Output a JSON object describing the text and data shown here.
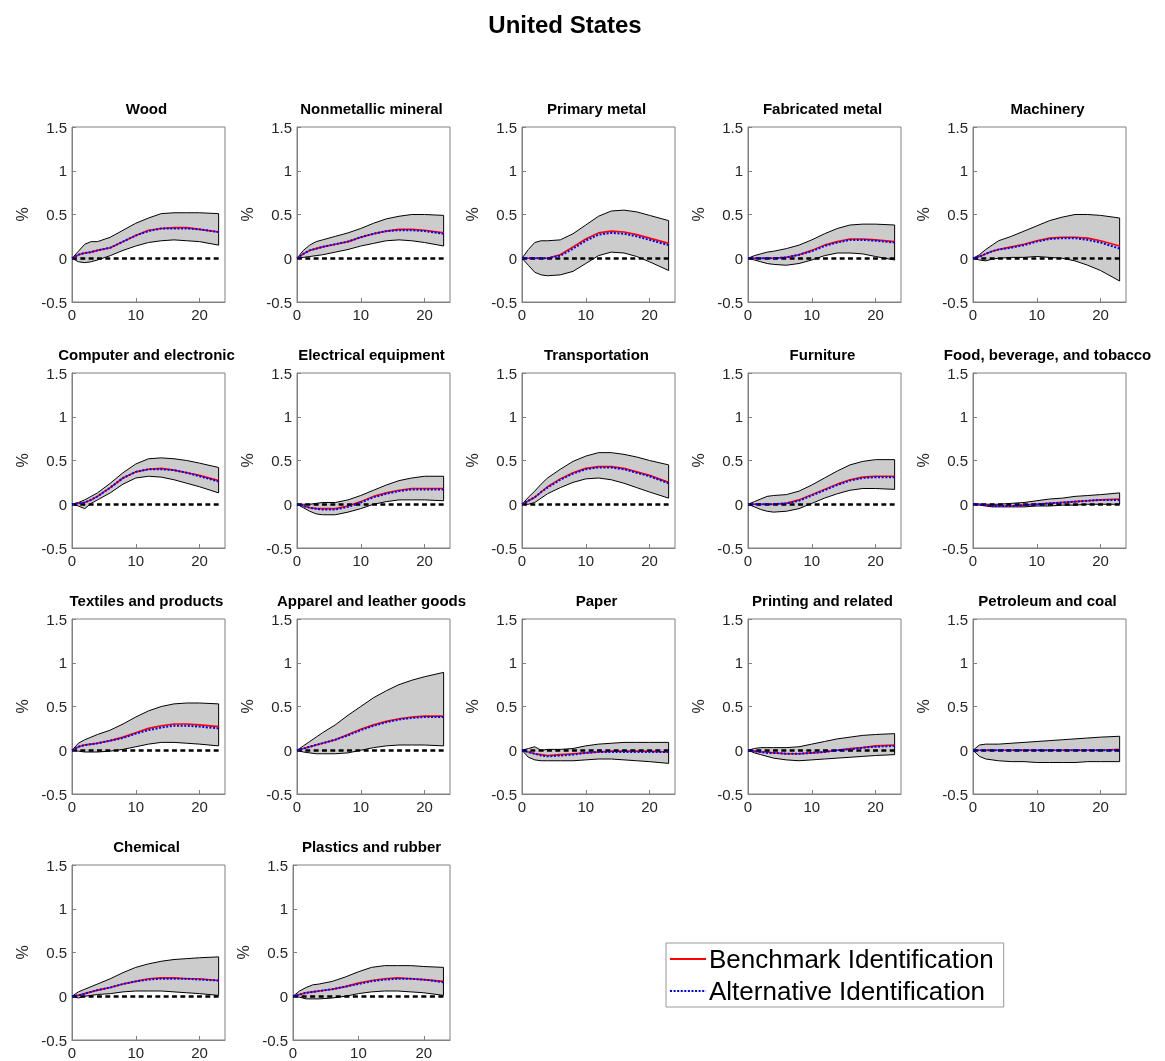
{
  "chart_data": [
    {
      "type": "other",
      "title": "United States"
    },
    {
      "type": "line",
      "title": "Wood",
      "ylabel": "%",
      "x": [
        0,
        1,
        2,
        3,
        4,
        6,
        8,
        10,
        12,
        14,
        16,
        18,
        20,
        23
      ],
      "xlim": [
        0,
        24
      ],
      "xticks": [
        0,
        10,
        20
      ],
      "ylim": [
        -0.5,
        1.5
      ],
      "yticks": [
        -0.5,
        0,
        0.5,
        1,
        1.5
      ],
      "ref_lines": [
        {
          "axis": "y",
          "value": 0,
          "color": "#000000",
          "line_style": "dashed"
        }
      ],
      "series": [
        {
          "color": "#ff0000",
          "values": [
            0,
            0.04,
            0.06,
            0.07,
            0.09,
            0.12,
            0.19,
            0.26,
            0.32,
            0.34,
            0.35,
            0.35,
            0.33,
            0.3
          ],
          "lower": [
            0,
            -0.04,
            -0.05,
            -0.04,
            -0.02,
            0.03,
            0.09,
            0.14,
            0.18,
            0.2,
            0.21,
            0.2,
            0.19,
            0.15
          ],
          "upper": [
            0,
            0.08,
            0.16,
            0.19,
            0.19,
            0.24,
            0.32,
            0.4,
            0.46,
            0.51,
            0.52,
            0.52,
            0.52,
            0.51
          ]
        },
        {
          "color": "#0000ff",
          "line_style": "dotted",
          "values": [
            0,
            0.04,
            0.06,
            0.07,
            0.09,
            0.12,
            0.19,
            0.26,
            0.31,
            0.34,
            0.34,
            0.34,
            0.33,
            0.3
          ]
        }
      ]
    },
    {
      "type": "line",
      "title": "Nonmetallic mineral",
      "ylabel": "%",
      "x": [
        0,
        1,
        2,
        3,
        4,
        6,
        8,
        10,
        12,
        14,
        16,
        18,
        20,
        23
      ],
      "xlim": [
        0,
        24
      ],
      "xticks": [
        0,
        10,
        20
      ],
      "ylim": [
        -0.5,
        1.5
      ],
      "yticks": [
        -0.5,
        0,
        0.5,
        1,
        1.5
      ],
      "ref_lines": [
        {
          "axis": "y",
          "value": 0,
          "color": "#000000",
          "line_style": "dashed"
        }
      ],
      "series": [
        {
          "color": "#ff0000",
          "values": [
            0,
            0.05,
            0.09,
            0.11,
            0.13,
            0.16,
            0.19,
            0.24,
            0.28,
            0.31,
            0.33,
            0.33,
            0.32,
            0.29
          ],
          "lower": [
            0,
            0.01,
            0.02,
            0.03,
            0.04,
            0.07,
            0.1,
            0.14,
            0.17,
            0.2,
            0.21,
            0.2,
            0.18,
            0.14
          ],
          "upper": [
            0,
            0.09,
            0.15,
            0.19,
            0.21,
            0.25,
            0.29,
            0.34,
            0.4,
            0.45,
            0.48,
            0.5,
            0.5,
            0.49
          ]
        },
        {
          "color": "#0000ff",
          "line_style": "dotted",
          "values": [
            0,
            0.05,
            0.09,
            0.11,
            0.13,
            0.16,
            0.19,
            0.24,
            0.28,
            0.31,
            0.32,
            0.32,
            0.31,
            0.28
          ]
        }
      ]
    },
    {
      "type": "line",
      "title": "Primary metal",
      "ylabel": "%",
      "x": [
        0,
        1,
        2,
        3,
        4,
        6,
        8,
        10,
        12,
        14,
        16,
        18,
        20,
        23
      ],
      "xlim": [
        0,
        24
      ],
      "xticks": [
        0,
        10,
        20
      ],
      "ylim": [
        -0.5,
        1.5
      ],
      "yticks": [
        -0.5,
        0,
        0.5,
        1,
        1.5
      ],
      "ref_lines": [
        {
          "axis": "y",
          "value": 0,
          "color": "#000000",
          "line_style": "dashed"
        }
      ],
      "series": [
        {
          "color": "#ff0000",
          "values": [
            0,
            0,
            0,
            0,
            0,
            0.04,
            0.13,
            0.22,
            0.29,
            0.31,
            0.3,
            0.27,
            0.23,
            0.17
          ],
          "lower": [
            0,
            -0.08,
            -0.16,
            -0.19,
            -0.2,
            -0.19,
            -0.15,
            -0.06,
            0.03,
            0.07,
            0.06,
            0.02,
            -0.04,
            -0.14
          ],
          "upper": [
            0,
            0.1,
            0.18,
            0.2,
            0.2,
            0.21,
            0.28,
            0.38,
            0.48,
            0.54,
            0.55,
            0.53,
            0.49,
            0.43
          ]
        },
        {
          "color": "#0000ff",
          "line_style": "dotted",
          "values": [
            0,
            0,
            0,
            0,
            0,
            0.03,
            0.11,
            0.2,
            0.27,
            0.29,
            0.28,
            0.25,
            0.21,
            0.15
          ]
        }
      ]
    },
    {
      "type": "line",
      "title": "Fabricated metal",
      "ylabel": "%",
      "x": [
        0,
        1,
        2,
        3,
        4,
        6,
        8,
        10,
        12,
        14,
        16,
        18,
        20,
        23
      ],
      "xlim": [
        0,
        24
      ],
      "xticks": [
        0,
        10,
        20
      ],
      "ylim": [
        -0.5,
        1.5
      ],
      "yticks": [
        -0.5,
        0,
        0.5,
        1,
        1.5
      ],
      "ref_lines": [
        {
          "axis": "y",
          "value": 0,
          "color": "#000000",
          "line_style": "dashed"
        }
      ],
      "series": [
        {
          "color": "#ff0000",
          "values": [
            0,
            0,
            0,
            0,
            0,
            0.01,
            0.04,
            0.09,
            0.15,
            0.19,
            0.22,
            0.22,
            0.21,
            0.19
          ],
          "lower": [
            0,
            -0.02,
            -0.04,
            -0.06,
            -0.07,
            -0.08,
            -0.06,
            -0.02,
            0.03,
            0.06,
            0.06,
            0.05,
            0.02,
            -0.02
          ],
          "upper": [
            0,
            0.03,
            0.05,
            0.07,
            0.08,
            0.11,
            0.15,
            0.21,
            0.28,
            0.34,
            0.38,
            0.39,
            0.39,
            0.38
          ]
        },
        {
          "color": "#0000ff",
          "line_style": "dotted",
          "values": [
            0,
            0,
            0,
            0,
            0,
            0.01,
            0.04,
            0.08,
            0.14,
            0.18,
            0.21,
            0.21,
            0.2,
            0.18
          ]
        }
      ]
    },
    {
      "type": "line",
      "title": "Machinery",
      "ylabel": "%",
      "x": [
        0,
        1,
        2,
        3,
        4,
        6,
        8,
        10,
        12,
        14,
        16,
        18,
        20,
        23
      ],
      "xlim": [
        0,
        24
      ],
      "xticks": [
        0,
        10,
        20
      ],
      "ylim": [
        -0.5,
        1.5
      ],
      "yticks": [
        -0.5,
        0,
        0.5,
        1,
        1.5
      ],
      "ref_lines": [
        {
          "axis": "y",
          "value": 0,
          "color": "#000000",
          "line_style": "dashed"
        }
      ],
      "series": [
        {
          "color": "#ff0000",
          "values": [
            0,
            0.02,
            0.05,
            0.08,
            0.1,
            0.13,
            0.16,
            0.2,
            0.23,
            0.24,
            0.24,
            0.23,
            0.2,
            0.14
          ],
          "lower": [
            0,
            -0.02,
            -0.03,
            -0.01,
            0,
            0.01,
            0.01,
            0.02,
            0.01,
            0,
            -0.03,
            -0.08,
            -0.14,
            -0.26
          ],
          "upper": [
            0,
            0.04,
            0.1,
            0.15,
            0.2,
            0.25,
            0.31,
            0.37,
            0.43,
            0.47,
            0.5,
            0.5,
            0.49,
            0.46
          ]
        },
        {
          "color": "#0000ff",
          "line_style": "dotted",
          "values": [
            0,
            0.02,
            0.05,
            0.08,
            0.1,
            0.12,
            0.15,
            0.19,
            0.22,
            0.23,
            0.23,
            0.21,
            0.18,
            0.11
          ]
        }
      ]
    },
    {
      "type": "line",
      "title": "Computer and electronic",
      "ylabel": "%",
      "x": [
        0,
        1,
        2,
        3,
        4,
        6,
        8,
        10,
        12,
        14,
        16,
        18,
        20,
        23
      ],
      "xlim": [
        0,
        24
      ],
      "xticks": [
        0,
        10,
        20
      ],
      "ylim": [
        -0.5,
        1.5
      ],
      "yticks": [
        -0.5,
        0,
        0.5,
        1,
        1.5
      ],
      "ref_lines": [
        {
          "axis": "y",
          "value": 0,
          "color": "#000000",
          "line_style": "dashed"
        }
      ],
      "series": [
        {
          "color": "#ff0000",
          "values": [
            0,
            0.01,
            0.02,
            0.05,
            0.09,
            0.19,
            0.3,
            0.37,
            0.4,
            0.41,
            0.39,
            0.36,
            0.33,
            0.27
          ],
          "lower": [
            0,
            -0.02,
            -0.05,
            0.01,
            0.05,
            0.13,
            0.23,
            0.3,
            0.32,
            0.31,
            0.28,
            0.24,
            0.2,
            0.13
          ],
          "upper": [
            0,
            0.02,
            0.05,
            0.09,
            0.13,
            0.24,
            0.36,
            0.46,
            0.52,
            0.53,
            0.52,
            0.5,
            0.47,
            0.42
          ]
        },
        {
          "color": "#0000ff",
          "line_style": "dotted",
          "values": [
            0,
            0.01,
            0.02,
            0.05,
            0.09,
            0.19,
            0.3,
            0.37,
            0.4,
            0.4,
            0.39,
            0.36,
            0.32,
            0.26
          ]
        }
      ]
    },
    {
      "type": "line",
      "title": "Electrical equipment",
      "ylabel": "%",
      "x": [
        0,
        1,
        2,
        3,
        4,
        6,
        8,
        10,
        12,
        14,
        16,
        18,
        20,
        23
      ],
      "xlim": [
        0,
        24
      ],
      "xticks": [
        0,
        10,
        20
      ],
      "ylim": [
        -0.5,
        1.5
      ],
      "yticks": [
        -0.5,
        0,
        0.5,
        1,
        1.5
      ],
      "ref_lines": [
        {
          "axis": "y",
          "value": 0,
          "color": "#000000",
          "line_style": "dashed"
        }
      ],
      "series": [
        {
          "color": "#ff0000",
          "values": [
            0,
            -0.02,
            -0.04,
            -0.05,
            -0.05,
            -0.05,
            -0.02,
            0.03,
            0.09,
            0.13,
            0.16,
            0.18,
            0.18,
            0.18
          ],
          "lower": [
            0,
            -0.04,
            -0.08,
            -0.11,
            -0.12,
            -0.12,
            -0.09,
            -0.05,
            0,
            0.03,
            0.05,
            0.05,
            0.05,
            0.04
          ],
          "upper": [
            0,
            0,
            0,
            0.01,
            0.02,
            0.02,
            0.05,
            0.1,
            0.16,
            0.22,
            0.27,
            0.3,
            0.32,
            0.32
          ]
        },
        {
          "color": "#0000ff",
          "line_style": "dotted",
          "values": [
            0,
            -0.02,
            -0.04,
            -0.05,
            -0.06,
            -0.06,
            -0.03,
            0.02,
            0.08,
            0.12,
            0.15,
            0.17,
            0.17,
            0.17
          ]
        }
      ]
    },
    {
      "type": "line",
      "title": "Transportation",
      "ylabel": "%",
      "x": [
        0,
        1,
        2,
        3,
        4,
        6,
        8,
        10,
        12,
        14,
        16,
        18,
        20,
        23
      ],
      "xlim": [
        0,
        24
      ],
      "xticks": [
        0,
        10,
        20
      ],
      "ylim": [
        -0.5,
        1.5
      ],
      "yticks": [
        -0.5,
        0,
        0.5,
        1,
        1.5
      ],
      "ref_lines": [
        {
          "axis": "y",
          "value": 0,
          "color": "#000000",
          "line_style": "dashed"
        }
      ],
      "series": [
        {
          "color": "#ff0000",
          "values": [
            0,
            0.04,
            0.08,
            0.14,
            0.2,
            0.29,
            0.36,
            0.41,
            0.43,
            0.43,
            0.41,
            0.37,
            0.33,
            0.25
          ],
          "lower": [
            0,
            0,
            0.02,
            0.07,
            0.12,
            0.19,
            0.25,
            0.29,
            0.3,
            0.28,
            0.24,
            0.19,
            0.14,
            0.07
          ],
          "upper": [
            0,
            0.08,
            0.15,
            0.23,
            0.3,
            0.4,
            0.49,
            0.55,
            0.59,
            0.59,
            0.57,
            0.54,
            0.5,
            0.45
          ]
        },
        {
          "color": "#0000ff",
          "line_style": "dotted",
          "values": [
            0,
            0.04,
            0.08,
            0.14,
            0.19,
            0.28,
            0.35,
            0.4,
            0.42,
            0.42,
            0.4,
            0.36,
            0.32,
            0.24
          ]
        }
      ]
    },
    {
      "type": "line",
      "title": "Furniture",
      "ylabel": "%",
      "x": [
        0,
        1,
        2,
        3,
        4,
        6,
        8,
        10,
        12,
        14,
        16,
        18,
        20,
        23
      ],
      "xlim": [
        0,
        24
      ],
      "xticks": [
        0,
        10,
        20
      ],
      "ylim": [
        -0.5,
        1.5
      ],
      "yticks": [
        -0.5,
        0,
        0.5,
        1,
        1.5
      ],
      "ref_lines": [
        {
          "axis": "y",
          "value": 0,
          "color": "#000000",
          "line_style": "dashed"
        }
      ],
      "series": [
        {
          "color": "#ff0000",
          "values": [
            0,
            0,
            0,
            0,
            0,
            0.01,
            0.05,
            0.11,
            0.17,
            0.23,
            0.28,
            0.31,
            0.32,
            0.32
          ],
          "lower": [
            0,
            -0.03,
            -0.06,
            -0.08,
            -0.09,
            -0.08,
            -0.05,
            0.01,
            0.07,
            0.12,
            0.16,
            0.18,
            0.18,
            0.17
          ],
          "upper": [
            0,
            0.03,
            0.06,
            0.09,
            0.1,
            0.11,
            0.15,
            0.22,
            0.3,
            0.38,
            0.45,
            0.49,
            0.51,
            0.51
          ]
        },
        {
          "color": "#0000ff",
          "line_style": "dotted",
          "values": [
            0,
            0,
            0,
            0,
            0,
            0.01,
            0.04,
            0.1,
            0.16,
            0.22,
            0.27,
            0.3,
            0.31,
            0.31
          ]
        }
      ]
    },
    {
      "type": "line",
      "title": "Food, beverage, and tobacco",
      "ylabel": "%",
      "x": [
        0,
        1,
        2,
        3,
        4,
        6,
        8,
        10,
        12,
        14,
        16,
        18,
        20,
        23
      ],
      "xlim": [
        0,
        24
      ],
      "xticks": [
        0,
        10,
        20
      ],
      "ylim": [
        -0.5,
        1.5
      ],
      "yticks": [
        -0.5,
        0,
        0.5,
        1,
        1.5
      ],
      "ref_lines": [
        {
          "axis": "y",
          "value": 0,
          "color": "#000000",
          "line_style": "dashed"
        }
      ],
      "series": [
        {
          "color": "#ff0000",
          "values": [
            0,
            0,
            -0.01,
            -0.01,
            -0.02,
            -0.02,
            -0.01,
            0,
            0.01,
            0.02,
            0.03,
            0.04,
            0.05,
            0.06
          ],
          "lower": [
            0,
            -0.01,
            -0.02,
            -0.03,
            -0.03,
            -0.03,
            -0.03,
            -0.02,
            -0.02,
            -0.01,
            -0.01,
            0,
            0,
            0
          ],
          "upper": [
            0,
            0,
            0,
            0,
            0,
            0.01,
            0.02,
            0.04,
            0.06,
            0.07,
            0.09,
            0.1,
            0.11,
            0.13
          ]
        },
        {
          "color": "#0000ff",
          "line_style": "dotted",
          "values": [
            0,
            0,
            -0.01,
            -0.02,
            -0.02,
            -0.02,
            -0.01,
            0,
            0.01,
            0.02,
            0.03,
            0.04,
            0.05,
            0.05
          ]
        }
      ]
    },
    {
      "type": "line",
      "title": "Textiles and products",
      "ylabel": "%",
      "x": [
        0,
        1,
        2,
        3,
        4,
        6,
        8,
        10,
        12,
        14,
        16,
        18,
        20,
        23
      ],
      "xlim": [
        0,
        24
      ],
      "xticks": [
        0,
        10,
        20
      ],
      "ylim": [
        -0.5,
        1.5
      ],
      "yticks": [
        -0.5,
        0,
        0.5,
        1,
        1.5
      ],
      "ref_lines": [
        {
          "axis": "y",
          "value": 0,
          "color": "#000000",
          "line_style": "dashed"
        }
      ],
      "series": [
        {
          "color": "#ff0000",
          "values": [
            0,
            0.04,
            0.06,
            0.07,
            0.08,
            0.11,
            0.15,
            0.2,
            0.25,
            0.28,
            0.3,
            0.3,
            0.29,
            0.27
          ],
          "lower": [
            0,
            -0.01,
            -0.02,
            -0.02,
            -0.02,
            -0.01,
            0.01,
            0.04,
            0.07,
            0.09,
            0.09,
            0.08,
            0.07,
            0.05
          ],
          "upper": [
            0,
            0.08,
            0.12,
            0.15,
            0.18,
            0.23,
            0.3,
            0.38,
            0.45,
            0.5,
            0.53,
            0.54,
            0.54,
            0.53
          ]
        },
        {
          "color": "#0000ff",
          "line_style": "dotted",
          "values": [
            0,
            0.04,
            0.06,
            0.07,
            0.08,
            0.11,
            0.14,
            0.19,
            0.23,
            0.26,
            0.28,
            0.28,
            0.27,
            0.25
          ]
        }
      ]
    },
    {
      "type": "line",
      "title": "Apparel and leather goods",
      "ylabel": "%",
      "x": [
        0,
        1,
        2,
        3,
        4,
        6,
        8,
        10,
        12,
        14,
        16,
        18,
        20,
        23
      ],
      "xlim": [
        0,
        24
      ],
      "xticks": [
        0,
        10,
        20
      ],
      "ylim": [
        -0.5,
        1.5
      ],
      "yticks": [
        -0.5,
        0,
        0.5,
        1,
        1.5
      ],
      "ref_lines": [
        {
          "axis": "y",
          "value": 0,
          "color": "#000000",
          "line_style": "dashed"
        }
      ],
      "series": [
        {
          "color": "#ff0000",
          "values": [
            0,
            0.02,
            0.04,
            0.06,
            0.08,
            0.12,
            0.18,
            0.24,
            0.29,
            0.33,
            0.36,
            0.38,
            0.39,
            0.39
          ],
          "lower": [
            0,
            -0.02,
            -0.03,
            -0.04,
            -0.04,
            -0.04,
            -0.03,
            0,
            0.03,
            0.05,
            0.06,
            0.06,
            0.06,
            0.05
          ],
          "upper": [
            0,
            0.05,
            0.1,
            0.15,
            0.2,
            0.29,
            0.4,
            0.5,
            0.6,
            0.68,
            0.75,
            0.8,
            0.84,
            0.89
          ]
        },
        {
          "color": "#0000ff",
          "line_style": "dotted",
          "values": [
            0,
            0.02,
            0.04,
            0.06,
            0.08,
            0.12,
            0.17,
            0.23,
            0.28,
            0.32,
            0.35,
            0.37,
            0.38,
            0.38
          ]
        }
      ]
    },
    {
      "type": "line",
      "title": "Paper",
      "ylabel": "%",
      "x": [
        0,
        1,
        2,
        3,
        4,
        6,
        8,
        10,
        12,
        14,
        16,
        18,
        20,
        23
      ],
      "xlim": [
        0,
        24
      ],
      "xticks": [
        0,
        10,
        20
      ],
      "ylim": [
        -0.5,
        1.5
      ],
      "yticks": [
        -0.5,
        0,
        0.5,
        1,
        1.5
      ],
      "ref_lines": [
        {
          "axis": "y",
          "value": 0,
          "color": "#000000",
          "line_style": "dashed"
        }
      ],
      "series": [
        {
          "color": "#ff0000",
          "values": [
            0,
            -0.02,
            -0.04,
            -0.05,
            -0.06,
            -0.05,
            -0.04,
            -0.03,
            -0.02,
            -0.01,
            -0.01,
            -0.01,
            -0.01,
            -0.02
          ],
          "lower": [
            0,
            -0.08,
            -0.11,
            -0.12,
            -0.12,
            -0.12,
            -0.12,
            -0.11,
            -0.1,
            -0.1,
            -0.11,
            -0.12,
            -0.13,
            -0.15
          ],
          "upper": [
            0,
            0.02,
            0.04,
            0,
            0.01,
            0.01,
            0.02,
            0.05,
            0.07,
            0.08,
            0.09,
            0.09,
            0.09,
            0.09
          ]
        },
        {
          "color": "#0000ff",
          "line_style": "dotted",
          "values": [
            0,
            -0.02,
            -0.04,
            -0.06,
            -0.07,
            -0.06,
            -0.05,
            -0.03,
            -0.02,
            -0.02,
            -0.02,
            -0.02,
            -0.02,
            -0.02
          ]
        }
      ]
    },
    {
      "type": "line",
      "title": "Printing and related",
      "ylabel": "%",
      "x": [
        0,
        1,
        2,
        3,
        4,
        6,
        8,
        10,
        12,
        14,
        16,
        18,
        20,
        23
      ],
      "xlim": [
        0,
        24
      ],
      "xticks": [
        0,
        10,
        20
      ],
      "ylim": [
        -0.5,
        1.5
      ],
      "yticks": [
        -0.5,
        0,
        0.5,
        1,
        1.5
      ],
      "ref_lines": [
        {
          "axis": "y",
          "value": 0,
          "color": "#000000",
          "line_style": "dashed"
        }
      ],
      "series": [
        {
          "color": "#ff0000",
          "values": [
            0,
            -0.01,
            -0.02,
            -0.02,
            -0.03,
            -0.04,
            -0.04,
            -0.03,
            -0.02,
            0,
            0.02,
            0.03,
            0.05,
            0.06
          ],
          "lower": [
            0,
            -0.03,
            -0.05,
            -0.07,
            -0.09,
            -0.11,
            -0.12,
            -0.11,
            -0.1,
            -0.09,
            -0.08,
            -0.07,
            -0.06,
            -0.05
          ],
          "upper": [
            0,
            0.02,
            0.03,
            0.03,
            0.03,
            0.03,
            0.04,
            0.07,
            0.1,
            0.13,
            0.15,
            0.17,
            0.18,
            0.19
          ]
        },
        {
          "color": "#0000ff",
          "line_style": "dotted",
          "values": [
            0,
            -0.01,
            -0.02,
            -0.03,
            -0.03,
            -0.04,
            -0.04,
            -0.03,
            -0.02,
            0,
            0.01,
            0.03,
            0.04,
            0.05
          ]
        }
      ]
    },
    {
      "type": "line",
      "title": "Petroleum and coal",
      "ylabel": "%",
      "x": [
        0,
        1,
        2,
        3,
        4,
        6,
        8,
        10,
        12,
        14,
        16,
        18,
        20,
        23
      ],
      "xlim": [
        0,
        24
      ],
      "xticks": [
        0,
        10,
        20
      ],
      "ylim": [
        -0.5,
        1.5
      ],
      "yticks": [
        -0.5,
        0,
        0.5,
        1,
        1.5
      ],
      "ref_lines": [
        {
          "axis": "y",
          "value": 0,
          "color": "#000000",
          "line_style": "dashed"
        }
      ],
      "series": [
        {
          "color": "#ff0000",
          "values": [
            0,
            0,
            0,
            0,
            0,
            0,
            0,
            0,
            0,
            0,
            0,
            0,
            0,
            0.01
          ],
          "lower": [
            0,
            -0.07,
            -0.1,
            -0.11,
            -0.12,
            -0.13,
            -0.13,
            -0.14,
            -0.14,
            -0.14,
            -0.14,
            -0.13,
            -0.13,
            -0.13
          ],
          "upper": [
            0,
            0.06,
            0.07,
            0.07,
            0.07,
            0.08,
            0.09,
            0.1,
            0.11,
            0.12,
            0.13,
            0.14,
            0.15,
            0.16
          ]
        },
        {
          "color": "#0000ff",
          "line_style": "dotted",
          "values": [
            0,
            0,
            0,
            0,
            0,
            0,
            0,
            0,
            0,
            0,
            0,
            0,
            0,
            0
          ]
        }
      ]
    },
    {
      "type": "line",
      "title": "Chemical",
      "ylabel": "%",
      "x": [
        0,
        1,
        2,
        3,
        4,
        6,
        8,
        10,
        12,
        14,
        16,
        18,
        20,
        23
      ],
      "xlim": [
        0,
        24
      ],
      "xticks": [
        0,
        10,
        20
      ],
      "ylim": [
        -0.5,
        1.5
      ],
      "yticks": [
        -0.5,
        0,
        0.5,
        1,
        1.5
      ],
      "ref_lines": [
        {
          "axis": "y",
          "value": 0,
          "color": "#000000",
          "line_style": "dashed"
        }
      ],
      "series": [
        {
          "color": "#ff0000",
          "values": [
            0,
            0.01,
            0.03,
            0.05,
            0.07,
            0.1,
            0.14,
            0.17,
            0.2,
            0.21,
            0.21,
            0.2,
            0.2,
            0.18
          ],
          "lower": [
            0,
            -0.02,
            0,
            0.01,
            0.02,
            0.03,
            0.05,
            0.06,
            0.06,
            0.06,
            0.05,
            0.04,
            0.03,
            0.01
          ],
          "upper": [
            0,
            0.05,
            0.08,
            0.11,
            0.14,
            0.2,
            0.27,
            0.33,
            0.37,
            0.4,
            0.42,
            0.43,
            0.44,
            0.45
          ]
        },
        {
          "color": "#0000ff",
          "line_style": "dotted",
          "values": [
            0,
            0.01,
            0.03,
            0.05,
            0.07,
            0.1,
            0.14,
            0.17,
            0.19,
            0.2,
            0.2,
            0.2,
            0.19,
            0.18
          ]
        }
      ]
    },
    {
      "type": "line",
      "title": "Plastics and rubber",
      "ylabel": "%",
      "x": [
        0,
        1,
        2,
        3,
        4,
        6,
        8,
        10,
        12,
        14,
        16,
        18,
        20,
        23
      ],
      "xlim": [
        0,
        24
      ],
      "xticks": [
        0,
        10,
        20
      ],
      "ylim": [
        -0.5,
        1.5
      ],
      "yticks": [
        -0.5,
        0,
        0.5,
        1,
        1.5
      ],
      "legend": "right",
      "ref_lines": [
        {
          "axis": "y",
          "value": 0,
          "color": "#000000",
          "line_style": "dashed"
        }
      ],
      "series": [
        {
          "name": "Benchmark Identification",
          "color": "#ff0000",
          "values": [
            0,
            0.02,
            0.04,
            0.05,
            0.06,
            0.08,
            0.11,
            0.15,
            0.18,
            0.2,
            0.21,
            0.2,
            0.19,
            0.17
          ],
          "lower": [
            0,
            -0.01,
            -0.03,
            -0.03,
            -0.03,
            -0.02,
            0,
            0.03,
            0.05,
            0.06,
            0.06,
            0.05,
            0.04,
            0.01
          ],
          "upper": [
            0,
            0.06,
            0.1,
            0.13,
            0.14,
            0.17,
            0.22,
            0.28,
            0.33,
            0.35,
            0.35,
            0.35,
            0.34,
            0.33
          ]
        },
        {
          "name": "Alternative Identification",
          "color": "#0000ff",
          "line_style": "dotted",
          "values": [
            0,
            0.02,
            0.04,
            0.05,
            0.06,
            0.08,
            0.11,
            0.14,
            0.17,
            0.19,
            0.2,
            0.2,
            0.19,
            0.16
          ]
        }
      ]
    }
  ]
}
